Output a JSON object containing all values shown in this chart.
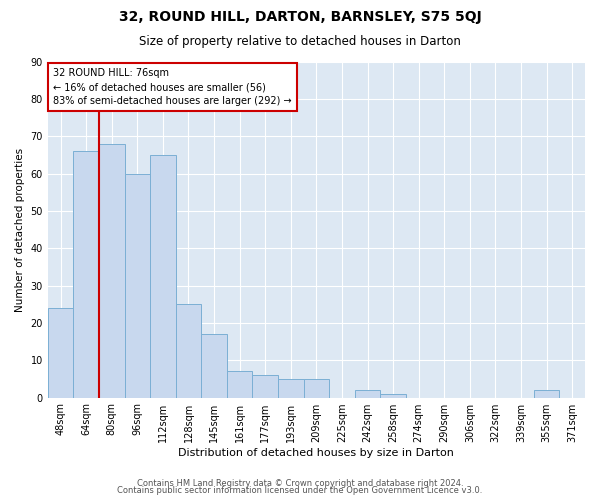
{
  "title": "32, ROUND HILL, DARTON, BARNSLEY, S75 5QJ",
  "subtitle": "Size of property relative to detached houses in Darton",
  "xlabel": "Distribution of detached houses by size in Darton",
  "ylabel": "Number of detached properties",
  "bar_labels": [
    "48sqm",
    "64sqm",
    "80sqm",
    "96sqm",
    "112sqm",
    "128sqm",
    "145sqm",
    "161sqm",
    "177sqm",
    "193sqm",
    "209sqm",
    "225sqm",
    "242sqm",
    "258sqm",
    "274sqm",
    "290sqm",
    "306sqm",
    "322sqm",
    "339sqm",
    "355sqm",
    "371sqm"
  ],
  "bar_values": [
    24,
    66,
    68,
    60,
    65,
    25,
    17,
    7,
    6,
    5,
    5,
    0,
    2,
    1,
    0,
    0,
    0,
    0,
    0,
    2,
    0
  ],
  "bar_color": "#c8d8ee",
  "bar_edge_color": "#7bafd4",
  "marker_color": "#cc0000",
  "annotation_text": "32 ROUND HILL: 76sqm\n← 16% of detached houses are smaller (56)\n83% of semi-detached houses are larger (292) →",
  "annotation_box_color": "#ffffff",
  "annotation_box_edge": "#cc0000",
  "ylim": [
    0,
    90
  ],
  "yticks": [
    0,
    10,
    20,
    30,
    40,
    50,
    60,
    70,
    80,
    90
  ],
  "footer1": "Contains HM Land Registry data © Crown copyright and database right 2024.",
  "footer2": "Contains public sector information licensed under the Open Government Licence v3.0.",
  "background_color": "#ffffff",
  "grid_color": "#dde8f3",
  "grid_line_color": "#ffffff",
  "title_fontsize": 10,
  "subtitle_fontsize": 8.5,
  "xlabel_fontsize": 8,
  "ylabel_fontsize": 7.5,
  "tick_fontsize": 7,
  "footer_fontsize": 6
}
